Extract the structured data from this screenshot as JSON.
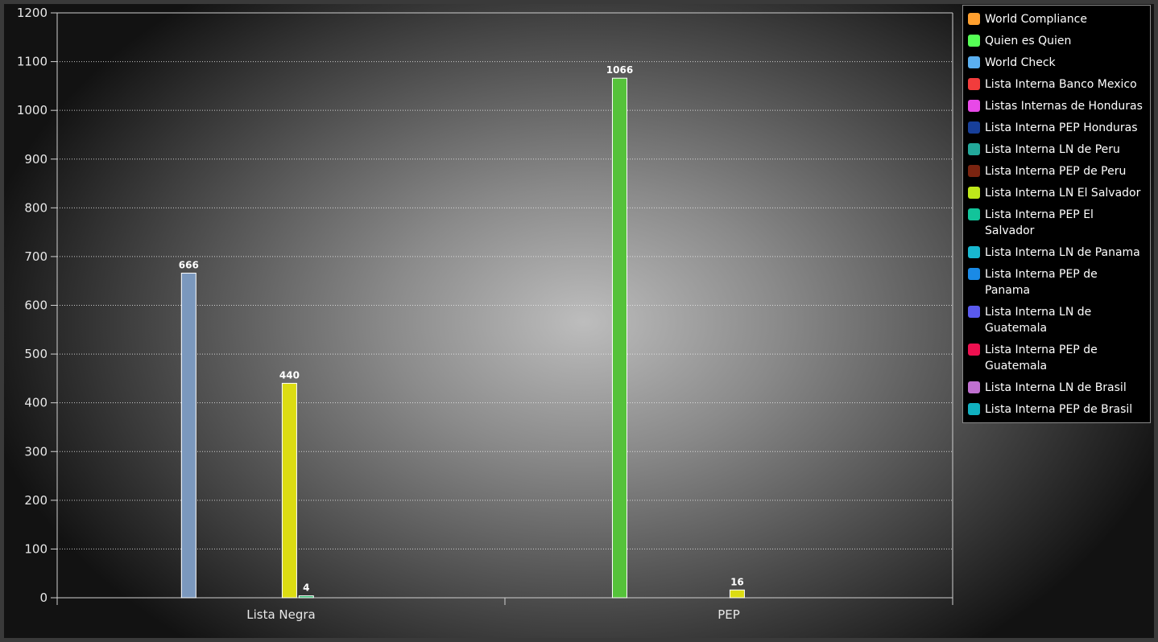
{
  "chart_data": {
    "type": "bar",
    "categories": [
      "Lista Negra",
      "PEP"
    ],
    "ylim": [
      0,
      1200
    ],
    "yticks": [
      0,
      100,
      200,
      300,
      400,
      500,
      600,
      700,
      800,
      900,
      1000,
      1100,
      1200
    ],
    "grid": true,
    "legend_position": "top-right",
    "series": [
      {
        "name": "World Compliance",
        "color": "#ff9f2e",
        "bar_color": null,
        "values": [
          null,
          null
        ]
      },
      {
        "name": "Quien es Quien",
        "color": "#55ff55",
        "bar_color": "#55c23a",
        "values": [
          null,
          1066
        ]
      },
      {
        "name": "World Check",
        "color": "#5aaff0",
        "bar_color": "#7b98bd",
        "values": [
          666,
          null
        ]
      },
      {
        "name": "Lista Interna Banco Mexico",
        "color": "#f23c3c",
        "bar_color": null,
        "values": [
          null,
          null
        ]
      },
      {
        "name": "Listas Internas de Honduras",
        "color": "#e849e8",
        "bar_color": null,
        "values": [
          null,
          null
        ]
      },
      {
        "name": "Lista Interna PEP Honduras",
        "color": "#173f99",
        "bar_color": null,
        "values": [
          null,
          null
        ]
      },
      {
        "name": "Lista Interna LN de Peru",
        "color": "#22a89a",
        "bar_color": null,
        "values": [
          null,
          null
        ]
      },
      {
        "name": "Lista Interna PEP de Peru",
        "color": "#7a2410",
        "bar_color": null,
        "values": [
          null,
          null
        ]
      },
      {
        "name": "Lista Interna LN El Salvador",
        "color": "#bfe81a",
        "bar_color": "#dcdc12",
        "values": [
          440,
          16
        ]
      },
      {
        "name": "Lista Interna PEP El Salvador",
        "color": "#12c49a",
        "bar_color": "#2ab86a",
        "values": [
          4,
          null
        ]
      },
      {
        "name": "Lista Interna LN de Panama",
        "color": "#18b8d0",
        "bar_color": null,
        "values": [
          null,
          null
        ]
      },
      {
        "name": "Lista Interna PEP de Panama",
        "color": "#1a8ae6",
        "bar_color": null,
        "values": [
          null,
          null
        ]
      },
      {
        "name": "Lista Interna LN de Guatemala",
        "color": "#5a5aee",
        "bar_color": null,
        "values": [
          null,
          null
        ]
      },
      {
        "name": "Lista Interna PEP de Guatemala",
        "color": "#ee1050",
        "bar_color": null,
        "values": [
          null,
          null
        ]
      },
      {
        "name": "Lista Interna LN de Brasil",
        "color": "#c070d0",
        "bar_color": null,
        "values": [
          null,
          null
        ]
      },
      {
        "name": "Lista Interna PEP de Brasil",
        "color": "#10b0c0",
        "bar_color": null,
        "values": [
          null,
          null
        ]
      }
    ]
  }
}
